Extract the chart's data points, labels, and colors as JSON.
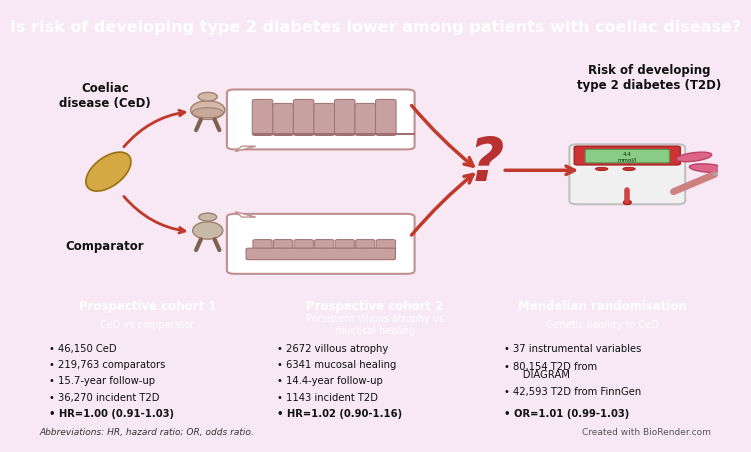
{
  "title": "Is risk of developing type 2 diabetes lower among patients with coeliac disease?",
  "title_bg": "#c4399e",
  "title_color": "#ffffff",
  "title_fontsize": 11.5,
  "main_bg": "#f7e8f3",
  "panel1_header_bg": "#2e5fa3",
  "panel2_header_bg": "#3a7d44",
  "panel3_header_bg": "#b83030",
  "panel1_body_bg": "#d8e8f8",
  "panel2_body_bg": "#d4edda",
  "panel3_body_bg": "#f4d4d0",
  "panel1_title": "Prospective cohort 1",
  "panel1_subtitle": "CeD vs comparator",
  "panel2_title": "Prospective cohort 2",
  "panel2_subtitle": "Persistent villous atrophy vs\nmucosal healing",
  "panel3_title": "Mendelian randomisation",
  "panel3_subtitle": "Genetic liability to CeD",
  "panel1_bullets_plain": [
    "46,150 CeD",
    "219,763 comparators",
    "15.7-year follow-up",
    "36,270 incident T2D"
  ],
  "panel1_bullets_bold": [
    "HR=1.00 (0.91-1.03)"
  ],
  "panel2_bullets_plain": [
    "2672 villous atrophy",
    "6341 mucosal healing",
    "14.4-year follow-up",
    "1143 incident T2D"
  ],
  "panel2_bullets_bold": [
    "HR=1.02 (0.90-1.16)"
  ],
  "panel3_bullets_plain": [
    "37 instrumental variables",
    "80,154 T2D from\n    DIAGRAM",
    "42,593 T2D from FinnGen"
  ],
  "panel3_bullets_bold": [
    "OR=1.01 (0.99-1.03)"
  ],
  "left_label1": "Coeliac\ndisease (CeD)",
  "left_label2": "Comparator",
  "right_label": "Risk of developing\ntype 2 diabetes (T2D)",
  "question_mark_color": "#b83030",
  "arrow_color": "#c0392b",
  "grain_color": "#d4a843",
  "grain_edge": "#9a7010",
  "bubble_edge": "#c09090",
  "villi_fill": "#c8a0a0",
  "villi_edge": "#a07070",
  "footnote": "Abbreviations: HR, hazard ratio; OR, odds ratio.",
  "credit": "Created with BioRender.com"
}
